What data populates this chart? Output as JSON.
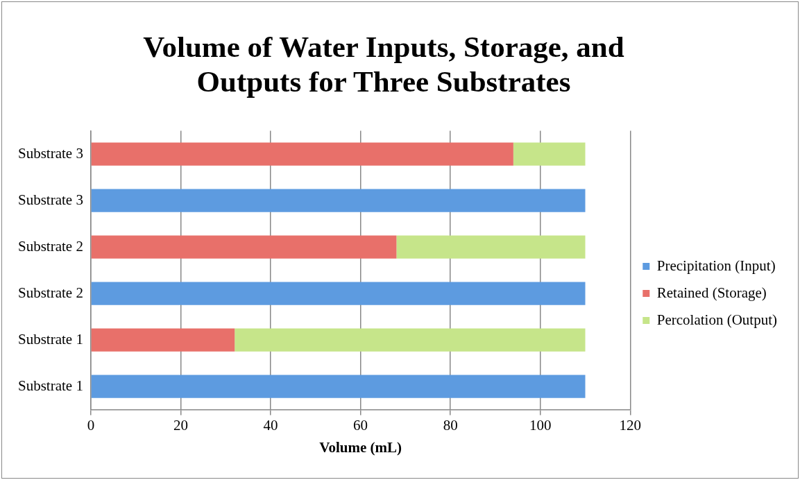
{
  "chart_data": {
    "type": "bar",
    "orientation": "horizontal",
    "stacked": true,
    "title": "Volume of Water Inputs, Storage, and Outputs for Three Substrates",
    "xlabel": "Volume (mL)",
    "categories": [
      "Substrate 3",
      "Substrate 3",
      "Substrate 2",
      "Substrate 2",
      "Substrate 1",
      "Substrate 1"
    ],
    "series": [
      {
        "name": "Precipitation (Input)",
        "color": "#5d9be0",
        "values": [
          null,
          110,
          null,
          110,
          null,
          110
        ]
      },
      {
        "name": "Retained (Storage)",
        "color": "#e8706a",
        "values": [
          94,
          null,
          68,
          null,
          32,
          null
        ]
      },
      {
        "name": "Percolation (Output)",
        "color": "#c6e58a",
        "values": [
          16,
          null,
          42,
          null,
          78,
          null
        ]
      }
    ],
    "xlim": [
      0,
      120
    ],
    "xticks": [
      0,
      20,
      40,
      60,
      80,
      100,
      120
    ],
    "grid": "x",
    "legend": "right"
  }
}
